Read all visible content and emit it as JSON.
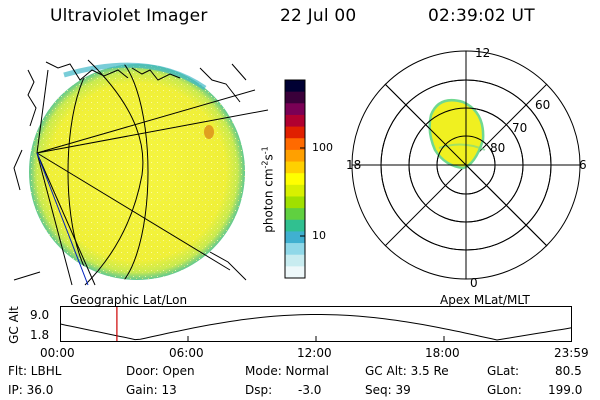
{
  "header": {
    "title": "Ultraviolet Imager",
    "date": "22 Jul 00",
    "time": "02:39:02 UT"
  },
  "colorbar": {
    "label": "photon cm-2s-1",
    "tick_high": "100",
    "tick_low": "10",
    "colors": [
      "#000033",
      "#3a003a",
      "#7a0055",
      "#b00030",
      "#e02000",
      "#ff6a00",
      "#ffa000",
      "#ffd000",
      "#ffff00",
      "#d8f000",
      "#a0e000",
      "#60d040",
      "#30c090",
      "#40b0d0",
      "#90d8e8",
      "#c8ecf0",
      "#eef8fa"
    ]
  },
  "polar": {
    "hour_labels": {
      "top": "12",
      "left": "18",
      "right": "6",
      "bottom": "0"
    },
    "lat_labels": [
      "60",
      "70",
      "80"
    ]
  },
  "map_caption": "Geographic Lat/Lon",
  "polar_caption": "Apex MLat/MLT",
  "timeline": {
    "ylabel": "GC Alt",
    "ymax_label": "9.0",
    "ymin_label": "1.8",
    "ticks": [
      "00:00",
      "06:00",
      "12:00",
      "18:00",
      "23:59"
    ],
    "current_time_hours": 2.65,
    "marker_color": "#cc0000"
  },
  "info": {
    "flt": "Flt: LBHL",
    "door": "Door: Open",
    "mode": "Mode: Normal",
    "gcalt": "GC Alt: 3.5 Re",
    "glat": "GLat:",
    "glat_val": "80.5",
    "ip": "IP: 36.0",
    "gain": "Gain: 13",
    "dsp": "Dsp:",
    "dsp_val": "-3.0",
    "seq": "Seq: 39",
    "glon": "GLon:",
    "glon_val": "199.0"
  },
  "colors": {
    "disk": "#f2f23a",
    "disk_edge": "#78d878",
    "limb": "#40c0a0",
    "spot": "#e0a000",
    "oval": "#f0f020"
  }
}
